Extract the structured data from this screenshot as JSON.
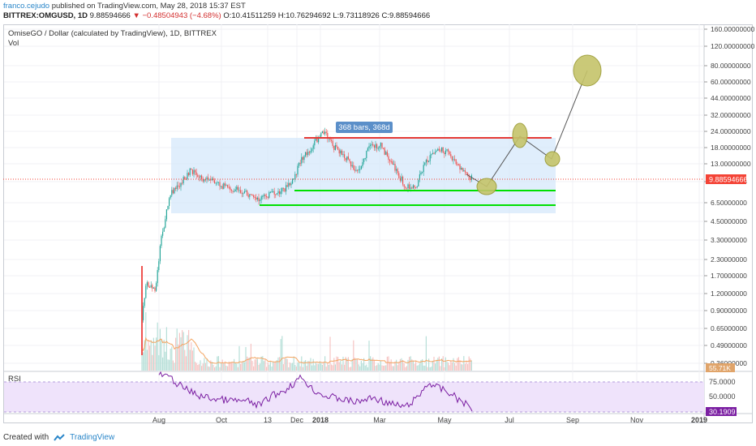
{
  "header": {
    "author": "franco.cejudo",
    "published_text": "published on TradingView.com, May 28, 2018 15:37 EST"
  },
  "symbol_line": {
    "symbol": "BITTREX:OMGUSD, 1D",
    "last": "9.88594666",
    "change": "▼ −0.48504943 (−4.68%)",
    "ohlc": "O:10.41511259 H:10.76294692 L:9.73118926 C:9.88594666"
  },
  "legend": {
    "title": "OmiseGO / Dollar (calculated by TradingView), 1D, BITTREX",
    "vol": "Vol"
  },
  "measure_label": "368 bars, 368d",
  "price_axis": {
    "ticks": [
      "160.00000000",
      "120.00000000",
      "80.00000000",
      "60.00000000",
      "44.00000000",
      "32.00000000",
      "24.00000000",
      "18.00000000",
      "13.00000000",
      "9.50000000",
      "6.50000000",
      "4.50000000",
      "3.30000000",
      "2.30000000",
      "1.70000000",
      "1.20000000",
      "0.90000000",
      "0.65000000",
      "0.49000000",
      "0.36000000"
    ],
    "last_price_label": "9.88594666",
    "vol_label": "55.71K"
  },
  "rsi": {
    "label": "RSI",
    "ticks": [
      "75.0000",
      "50.0000"
    ],
    "value_label": "30.1909"
  },
  "time_axis": {
    "labels": [
      "Aug",
      "Oct",
      "13",
      "Dec",
      "2018",
      "Mar",
      "May",
      "Jul",
      "Sep",
      "Nov",
      "2019"
    ]
  },
  "footer": {
    "created_with": "Created with",
    "brand": "TradingView"
  },
  "colors": {
    "up": "#26a69a",
    "down": "#ef5350",
    "resistance": "#e53935",
    "support": "#00e000",
    "range_box": "#d6e8fb",
    "ellipse_fill": "#c5c46a",
    "rsi_line": "#7b1fa2",
    "rsi_band": "#efe3fb",
    "last_price": "#f44336"
  }
}
